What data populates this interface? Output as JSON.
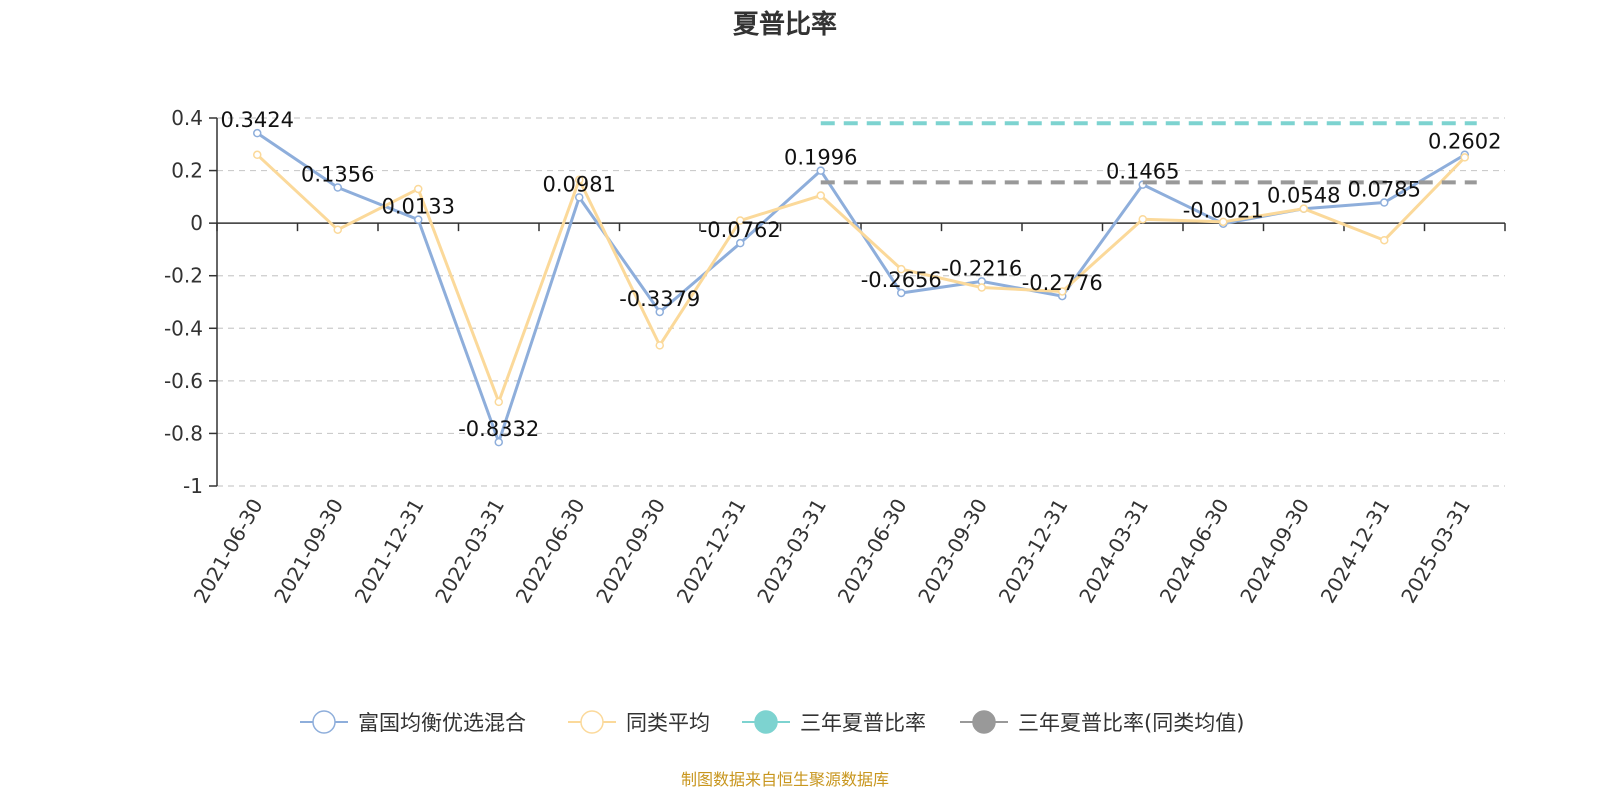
{
  "chart_data": {
    "type": "line",
    "title": "夏普比率",
    "categories": [
      "2021-06-30",
      "2021-09-30",
      "2021-12-31",
      "2022-03-31",
      "2022-06-30",
      "2022-09-30",
      "2022-12-31",
      "2023-03-31",
      "2023-06-30",
      "2023-09-30",
      "2023-12-31",
      "2024-03-31",
      "2024-06-30",
      "2024-09-30",
      "2024-12-31",
      "2025-03-31"
    ],
    "ylim": [
      -1,
      0.4
    ],
    "yticks": [
      "0.4",
      "0.2",
      "0",
      "-0.2",
      "-0.4",
      "-0.6",
      "-0.8",
      "-1"
    ],
    "grid": true,
    "legend_position": "bottom",
    "series": [
      {
        "name": "富国均衡优选混合",
        "color": "#8eaedb",
        "values": [
          0.3424,
          0.1356,
          0.0133,
          -0.8332,
          0.0981,
          -0.3379,
          -0.0762,
          0.1996,
          -0.2656,
          -0.2216,
          -0.2776,
          0.1465,
          -0.0021,
          0.0548,
          0.0785,
          0.2602
        ],
        "labels": [
          "0.3424",
          "0.1356",
          "0.0133",
          "-0.8332",
          "0.0981",
          "-0.3379",
          "-0.0762",
          "0.1996",
          "-0.2656",
          "-0.2216",
          "-0.2776",
          "0.1465",
          "-0.0021",
          "0.0548",
          "0.0785",
          "0.2602"
        ]
      },
      {
        "name": "同类平均",
        "color": "#fbd99a",
        "values": [
          0.26,
          -0.025,
          0.13,
          -0.68,
          0.165,
          -0.465,
          0.01,
          0.105,
          -0.175,
          -0.245,
          -0.26,
          0.015,
          0.005,
          0.055,
          -0.065,
          0.25
        ]
      },
      {
        "name": "三年夏普比率",
        "color": "#7dd3d0",
        "style": "dashed",
        "value": 0.38,
        "start_category": "2023-03-31",
        "end_category": "2025-03-31"
      },
      {
        "name": "三年夏普比率(同类均值)",
        "color": "#999999",
        "style": "dashed",
        "value": 0.155,
        "start_category": "2023-03-31",
        "end_category": "2025-03-31"
      }
    ]
  },
  "source_text": "制图数据来自恒生聚源数据库"
}
